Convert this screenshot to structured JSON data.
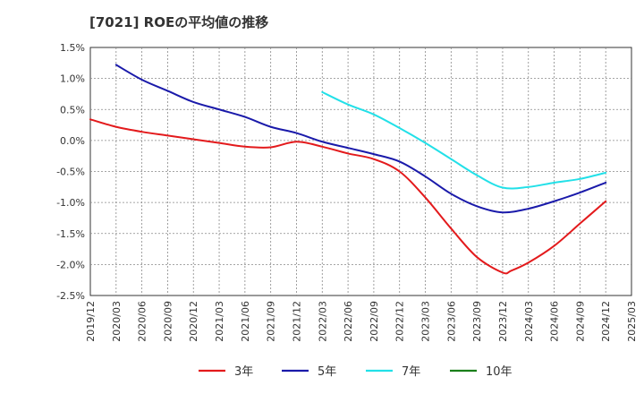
{
  "chart_data": {
    "type": "line",
    "title": "[7021]  ROEの平均値の推移",
    "y_ticks": [
      "1.5%",
      "1.0%",
      "0.5%",
      "0.0%",
      "-0.5%",
      "-1.0%",
      "-1.5%",
      "-2.0%",
      "-2.5%"
    ],
    "y_tick_values": [
      1.5,
      1.0,
      0.5,
      0.0,
      -0.5,
      -1.0,
      -1.5,
      -2.0,
      -2.5
    ],
    "ylim": [
      -2.5,
      1.5
    ],
    "x_ticks": [
      "2019/12",
      "2020/03",
      "2020/06",
      "2020/09",
      "2020/12",
      "2021/03",
      "2021/06",
      "2021/09",
      "2021/12",
      "2022/03",
      "2022/06",
      "2022/09",
      "2022/12",
      "2023/03",
      "2023/06",
      "2023/09",
      "2023/12",
      "2024/03",
      "2024/06",
      "2024/09",
      "2024/12",
      "2025/03"
    ],
    "grid": true,
    "legend_position": "bottom",
    "series": [
      {
        "name": "3年",
        "color": "#e31a1c",
        "points": [
          [
            "2019/12",
            0.34
          ],
          [
            "2020/03",
            0.22
          ],
          [
            "2020/06",
            0.14
          ],
          [
            "2020/09",
            0.08
          ],
          [
            "2020/12",
            0.02
          ],
          [
            "2021/03",
            -0.04
          ],
          [
            "2021/06",
            -0.1
          ],
          [
            "2021/09",
            -0.11
          ],
          [
            "2021/12",
            -0.02
          ],
          [
            "2022/03",
            -0.1
          ],
          [
            "2022/06",
            -0.21
          ],
          [
            "2022/09",
            -0.3
          ],
          [
            "2022/12",
            -0.5
          ],
          [
            "2023/03",
            -0.92
          ],
          [
            "2023/06",
            -1.42
          ],
          [
            "2023/09",
            -1.88
          ],
          [
            "2023/12",
            -2.13
          ],
          [
            "2024/01",
            -2.1
          ],
          [
            "2024/03",
            -1.97
          ],
          [
            "2024/06",
            -1.7
          ],
          [
            "2024/09",
            -1.34
          ],
          [
            "2024/12",
            -0.98
          ]
        ]
      },
      {
        "name": "5年",
        "color": "#1a1aaa",
        "points": [
          [
            "2020/03",
            1.22
          ],
          [
            "2020/06",
            0.98
          ],
          [
            "2020/09",
            0.8
          ],
          [
            "2020/12",
            0.62
          ],
          [
            "2021/03",
            0.5
          ],
          [
            "2021/06",
            0.38
          ],
          [
            "2021/09",
            0.22
          ],
          [
            "2021/12",
            0.12
          ],
          [
            "2022/03",
            -0.02
          ],
          [
            "2022/06",
            -0.12
          ],
          [
            "2022/09",
            -0.22
          ],
          [
            "2022/12",
            -0.34
          ],
          [
            "2023/03",
            -0.58
          ],
          [
            "2023/06",
            -0.86
          ],
          [
            "2023/09",
            -1.06
          ],
          [
            "2023/12",
            -1.16
          ],
          [
            "2024/03",
            -1.1
          ],
          [
            "2024/06",
            -0.98
          ],
          [
            "2024/09",
            -0.84
          ],
          [
            "2024/12",
            -0.68
          ]
        ]
      },
      {
        "name": "7年",
        "color": "#22e0e8",
        "points": [
          [
            "2022/03",
            0.78
          ],
          [
            "2022/06",
            0.58
          ],
          [
            "2022/09",
            0.42
          ],
          [
            "2022/12",
            0.2
          ],
          [
            "2023/03",
            -0.04
          ],
          [
            "2023/06",
            -0.3
          ],
          [
            "2023/09",
            -0.56
          ],
          [
            "2023/12",
            -0.76
          ],
          [
            "2024/03",
            -0.75
          ],
          [
            "2024/06",
            -0.68
          ],
          [
            "2024/09",
            -0.62
          ],
          [
            "2024/12",
            -0.52
          ]
        ]
      },
      {
        "name": "10年",
        "color": "#1a7f1a",
        "points": []
      }
    ]
  }
}
